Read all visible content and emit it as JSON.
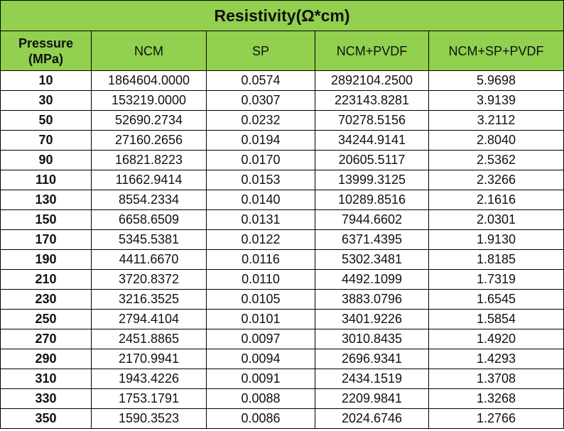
{
  "table": {
    "title": "Resistivity(Ω*cm)",
    "headers": [
      "Pressure (MPa)",
      "NCM",
      "SP",
      "NCM+PVDF",
      "NCM+SP+PVDF"
    ],
    "rows": [
      [
        "10",
        "1864604.0000",
        "0.0574",
        "2892104.2500",
        "5.9698"
      ],
      [
        "30",
        "153219.0000",
        "0.0307",
        "223143.8281",
        "3.9139"
      ],
      [
        "50",
        "52690.2734",
        "0.0232",
        "70278.5156",
        "3.2112"
      ],
      [
        "70",
        "27160.2656",
        "0.0194",
        "34244.9141",
        "2.8040"
      ],
      [
        "90",
        "16821.8223",
        "0.0170",
        "20605.5117",
        "2.5362"
      ],
      [
        "110",
        "11662.9414",
        "0.0153",
        "13999.3125",
        "2.3266"
      ],
      [
        "130",
        "8554.2334",
        "0.0140",
        "10289.8516",
        "2.1616"
      ],
      [
        "150",
        "6658.6509",
        "0.0131",
        "7944.6602",
        "2.0301"
      ],
      [
        "170",
        "5345.5381",
        "0.0122",
        "6371.4395",
        "1.9130"
      ],
      [
        "190",
        "4411.6670",
        "0.0116",
        "5302.3481",
        "1.8185"
      ],
      [
        "210",
        "3720.8372",
        "0.0110",
        "4492.1099",
        "1.7319"
      ],
      [
        "230",
        "3216.3525",
        "0.0105",
        "3883.0796",
        "1.6545"
      ],
      [
        "250",
        "2794.4104",
        "0.0101",
        "3401.9226",
        "1.5854"
      ],
      [
        "270",
        "2451.8865",
        "0.0097",
        "3010.8435",
        "1.4920"
      ],
      [
        "290",
        "2170.9941",
        "0.0094",
        "2696.9341",
        "1.4293"
      ],
      [
        "310",
        "1943.4226",
        "0.0091",
        "2434.1519",
        "1.3708"
      ],
      [
        "330",
        "1753.1791",
        "0.0088",
        "2209.9841",
        "1.3268"
      ],
      [
        "350",
        "1590.3523",
        "0.0086",
        "2024.6746",
        "1.2766"
      ]
    ]
  }
}
